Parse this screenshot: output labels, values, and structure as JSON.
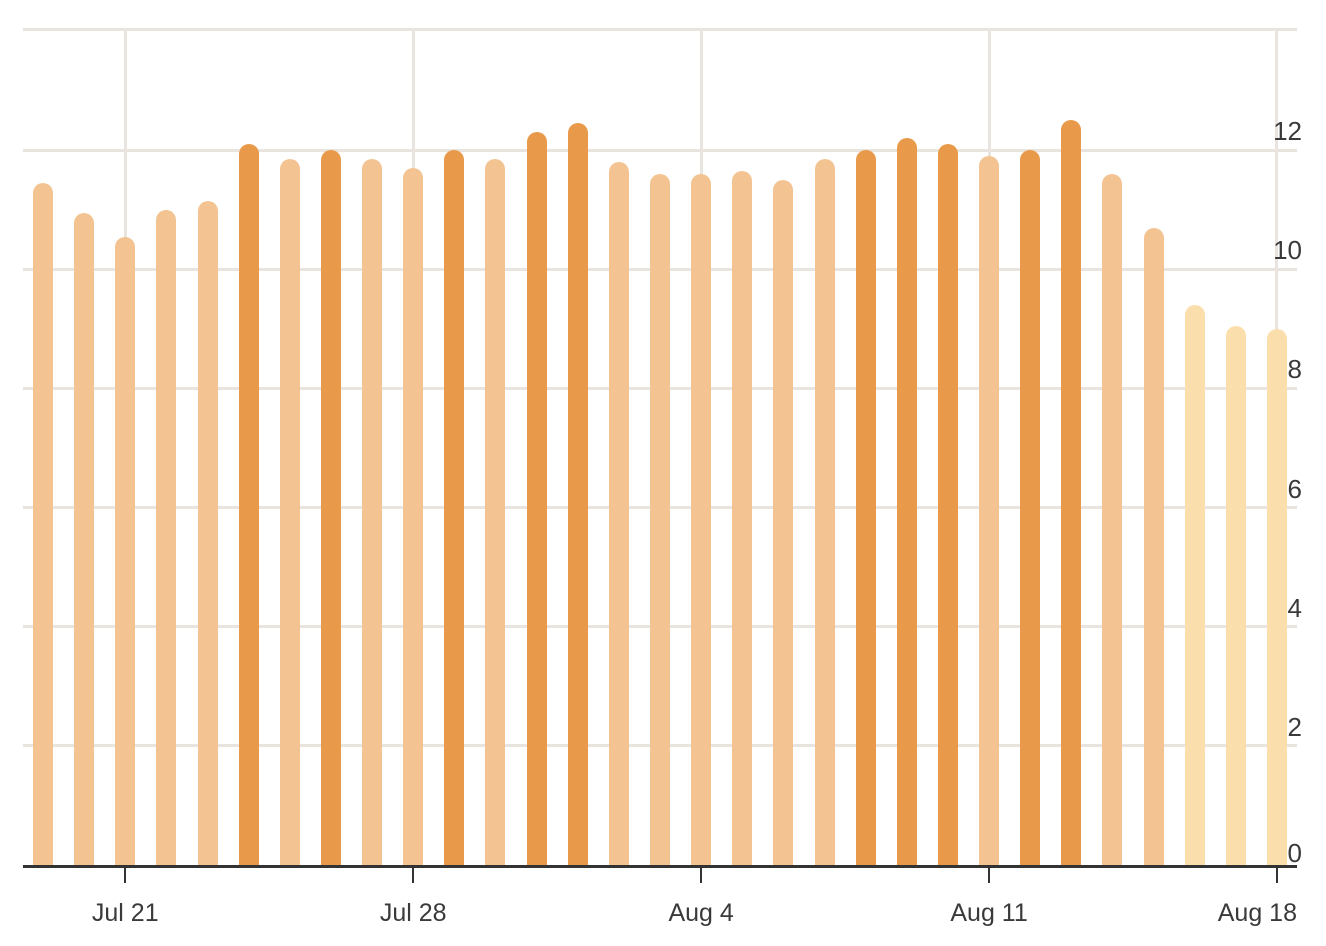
{
  "chart_data": {
    "type": "bar",
    "title": "",
    "xlabel": "",
    "ylabel": "",
    "x": [
      "Jul 19",
      "Jul 20",
      "Jul 21",
      "Jul 22",
      "Jul 23",
      "Jul 24",
      "Jul 25",
      "Jul 26",
      "Jul 27",
      "Jul 28",
      "Jul 29",
      "Jul 30",
      "Jul 31",
      "Aug 1",
      "Aug 2",
      "Aug 3",
      "Aug 4",
      "Aug 5",
      "Aug 6",
      "Aug 7",
      "Aug 8",
      "Aug 9",
      "Aug 10",
      "Aug 11",
      "Aug 12",
      "Aug 13",
      "Aug 14",
      "Aug 15",
      "Aug 16",
      "Aug 17",
      "Aug 18"
    ],
    "values": [
      11.45,
      10.95,
      10.55,
      11.0,
      11.15,
      12.1,
      11.85,
      12.0,
      11.85,
      11.7,
      12.0,
      11.85,
      12.3,
      12.45,
      11.8,
      11.6,
      11.6,
      11.65,
      11.5,
      11.85,
      12.0,
      12.2,
      12.1,
      11.9,
      12.0,
      12.5,
      11.6,
      10.7,
      9.4,
      9.05,
      9.0
    ],
    "tiers": [
      "mid",
      "mid",
      "mid",
      "mid",
      "mid",
      "high",
      "mid",
      "high",
      "mid",
      "mid",
      "high",
      "mid",
      "high",
      "high",
      "mid",
      "mid",
      "mid",
      "mid",
      "mid",
      "mid",
      "high",
      "high",
      "high",
      "mid",
      "high",
      "high",
      "mid",
      "mid",
      "low",
      "low",
      "low"
    ],
    "tier_rule": "high: value >= 12 (dark orange); mid: 10 <= value < 12 (medium orange); low: value < 10 (pale orange)",
    "x_tick_labels": [
      "Jul 21",
      "Jul 28",
      "Aug 4",
      "Aug 11",
      "Aug 18"
    ],
    "x_tick_indices": [
      2,
      9,
      16,
      23,
      30
    ],
    "y_tick_labels": [
      "0",
      "2",
      "4",
      "6",
      "8",
      "10",
      "12"
    ],
    "y_ticks": [
      0,
      2,
      4,
      6,
      8,
      10,
      12
    ],
    "ylim": [
      0,
      14
    ],
    "grid": true,
    "legend": "none",
    "y_axis_side": "right",
    "colors": {
      "bar_high": "#e9994a",
      "bar_mid": "#f3c492",
      "bar_low": "#fadfac",
      "gridline": "#e9e5de",
      "axis_line": "#333333",
      "label_text": "#3a3a3a"
    }
  }
}
